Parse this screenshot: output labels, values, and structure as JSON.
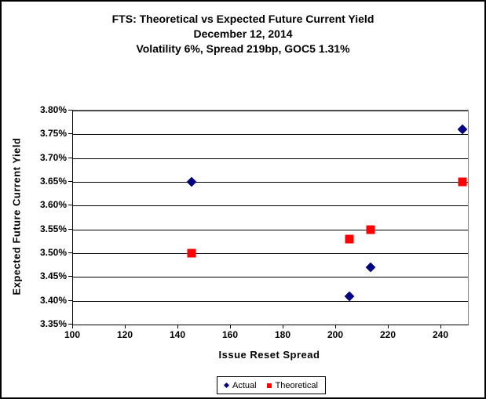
{
  "chart_data": {
    "type": "scatter",
    "title_lines": [
      "FTS: Theoretical vs Expected Future Current Yield",
      "December 12, 2014",
      "Volatility 6%, Spread 219bp, GOC5 1.31%"
    ],
    "xlabel": "Issue Reset Spread",
    "ylabel": "Expected Future Current Yield",
    "xlim": [
      100,
      250
    ],
    "ylim": [
      3.35,
      3.8
    ],
    "x_major_unit": 20,
    "y_major_unit": 0.05,
    "grid": "horizontal-only",
    "legend_position": "bottom-center",
    "xticks": [
      {
        "value": 100,
        "label": "100"
      },
      {
        "value": 120,
        "label": "120"
      },
      {
        "value": 140,
        "label": "140"
      },
      {
        "value": 160,
        "label": "160"
      },
      {
        "value": 180,
        "label": "180"
      },
      {
        "value": 200,
        "label": "200"
      },
      {
        "value": 220,
        "label": "220"
      },
      {
        "value": 240,
        "label": "240"
      }
    ],
    "yticks": [
      {
        "value": 3.8,
        "label": "3.80%"
      },
      {
        "value": 3.75,
        "label": "3.75%"
      },
      {
        "value": 3.7,
        "label": "3.70%"
      },
      {
        "value": 3.65,
        "label": "3.65%"
      },
      {
        "value": 3.6,
        "label": "3.60%"
      },
      {
        "value": 3.55,
        "label": "3.55%"
      },
      {
        "value": 3.5,
        "label": "3.50%"
      },
      {
        "value": 3.45,
        "label": "3.45%"
      },
      {
        "value": 3.4,
        "label": "3.40%"
      },
      {
        "value": 3.35,
        "label": "3.35%"
      }
    ],
    "series": [
      {
        "name": "Actual",
        "marker": "diamond",
        "color": "#000080",
        "points": [
          {
            "x": 145,
            "y": 3.65
          },
          {
            "x": 205,
            "y": 3.41
          },
          {
            "x": 213,
            "y": 3.47
          },
          {
            "x": 248,
            "y": 3.76
          }
        ]
      },
      {
        "name": "Theoretical",
        "marker": "square",
        "color": "#FF0000",
        "points": [
          {
            "x": 145,
            "y": 3.5
          },
          {
            "x": 205,
            "y": 3.53
          },
          {
            "x": 213,
            "y": 3.55
          },
          {
            "x": 248,
            "y": 3.65
          }
        ]
      }
    ],
    "colors": {
      "background": "#FFFFFF",
      "gridline": "#000000",
      "plot_border": "#808080",
      "axis": "#000000",
      "text": "#000000"
    }
  }
}
